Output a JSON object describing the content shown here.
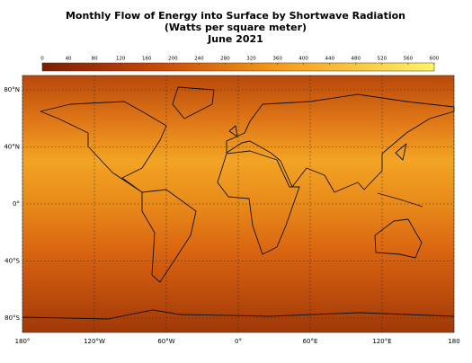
{
  "header": {
    "title_lines": [
      "Monthly Flow of Energy into Surface by Shortwave Radiation",
      "(Watts per square meter)",
      "June 2021"
    ]
  },
  "colorbar": {
    "range": [
      0,
      600
    ],
    "ticks": [
      0,
      40,
      80,
      120,
      160,
      200,
      240,
      280,
      320,
      360,
      400,
      440,
      480,
      520,
      560,
      600
    ]
  },
  "map": {
    "lat_ticks": [
      {
        "value": 80,
        "label": "80°N"
      },
      {
        "value": 40,
        "label": "40°N"
      },
      {
        "value": 0,
        "label": "0°"
      },
      {
        "value": -40,
        "label": "40°S"
      },
      {
        "value": -80,
        "label": "80°S"
      }
    ],
    "lon_ticks": [
      {
        "value": -180,
        "label": "180°"
      },
      {
        "value": -120,
        "label": "120°W"
      },
      {
        "value": -60,
        "label": "60°W"
      },
      {
        "value": 0,
        "label": "0°"
      },
      {
        "value": 60,
        "label": "60°E"
      },
      {
        "value": 120,
        "label": "120°E"
      },
      {
        "value": 180,
        "label": "180"
      }
    ]
  }
}
